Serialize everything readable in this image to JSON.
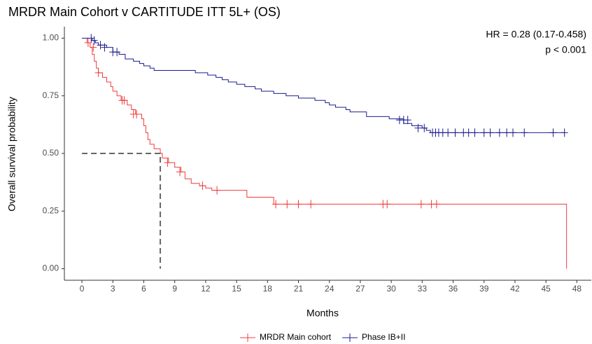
{
  "chart_data": {
    "type": "km",
    "title": "MRDR Main Cohort v CARTITUDE ITT 5L+ (OS)",
    "x_label": "Months",
    "y_label": "Overall survival probability",
    "annotations": [
      "HR = 0.28 (0.17-0.458)",
      "p < 0.001"
    ],
    "xlim": [
      -1.7,
      49.4
    ],
    "ylim": [
      -0.05,
      1.05
    ],
    "xticks": [
      0,
      3,
      6,
      9,
      12,
      15,
      18,
      21,
      24,
      27,
      30,
      33,
      36,
      39,
      42,
      45,
      48
    ],
    "yticks": [
      {
        "value": 0,
        "label": "0.00"
      },
      0.25,
      {
        "value": 0.5,
        "label": "0.50"
      },
      0.75,
      {
        "value": 1,
        "label": "1.00"
      }
    ],
    "median": {
      "x": 7.6,
      "y": 0.5
    },
    "legend": "bottom",
    "series": [
      {
        "name": "MRDR Main cohort",
        "color": "#f03c3c",
        "x": [
          0,
          0.5,
          0.8,
          1.0,
          1.2,
          1.4,
          1.6,
          2.0,
          2.4,
          2.8,
          3.0,
          3.4,
          3.8,
          4.4,
          4.8,
          5.2,
          5.8,
          6.0,
          6.2,
          6.4,
          6.6,
          7.0,
          7.6,
          7.8,
          8.4,
          9.0,
          9.6,
          10.0,
          10.6,
          11.4,
          12.0,
          12.6,
          16.0,
          18.6,
          47.0
        ],
        "values": [
          1.0,
          0.98,
          0.96,
          0.93,
          0.9,
          0.87,
          0.85,
          0.83,
          0.81,
          0.79,
          0.77,
          0.75,
          0.73,
          0.71,
          0.69,
          0.67,
          0.65,
          0.62,
          0.59,
          0.56,
          0.54,
          0.52,
          0.5,
          0.48,
          0.46,
          0.44,
          0.42,
          0.39,
          0.37,
          0.36,
          0.35,
          0.34,
          0.31,
          0.28,
          0.0
        ],
        "censored": {
          "x": [
            0.6,
            1.1,
            1.6,
            3.9,
            4.1,
            5.0,
            5.3,
            8.3,
            9.5,
            11.7,
            13.1,
            18.8,
            19.9,
            21.0,
            22.2,
            29.2,
            29.6,
            32.9,
            33.9,
            34.4
          ],
          "values": [
            0.98,
            0.96,
            0.85,
            0.73,
            0.73,
            0.67,
            0.67,
            0.46,
            0.42,
            0.36,
            0.34,
            0.28,
            0.28,
            0.28,
            0.28,
            0.28,
            0.28,
            0.28,
            0.28,
            0.28
          ]
        }
      },
      {
        "name": "Phase IB+II",
        "color": "#1c1c8e",
        "x": [
          0,
          1.0,
          1.3,
          1.6,
          2.4,
          3.0,
          3.6,
          4.2,
          5.0,
          5.6,
          6.0,
          6.6,
          7.0,
          11.0,
          12.2,
          13.0,
          13.6,
          14.2,
          15.0,
          15.8,
          16.8,
          17.4,
          18.6,
          19.8,
          21.0,
          22.6,
          23.6,
          24.0,
          24.6,
          25.6,
          26.0,
          27.6,
          29.8,
          31.2,
          32.0,
          33.0,
          33.4,
          33.8,
          46.8
        ],
        "values": [
          1.0,
          0.99,
          0.98,
          0.97,
          0.96,
          0.94,
          0.93,
          0.91,
          0.9,
          0.89,
          0.88,
          0.87,
          0.86,
          0.85,
          0.84,
          0.83,
          0.82,
          0.81,
          0.8,
          0.79,
          0.78,
          0.77,
          0.76,
          0.75,
          0.74,
          0.73,
          0.72,
          0.71,
          0.7,
          0.69,
          0.68,
          0.66,
          0.65,
          0.63,
          0.62,
          0.61,
          0.6,
          0.59,
          0.59
        ],
        "censored": {
          "x": [
            0.9,
            1.2,
            1.8,
            2.2,
            3.0,
            3.4,
            30.8,
            31.2,
            31.6,
            32.6,
            33.2,
            34.0,
            34.3,
            34.6,
            35.0,
            35.5,
            36.2,
            37.0,
            37.5,
            38.1,
            39.0,
            39.6,
            40.5,
            41.2,
            41.8,
            42.9,
            45.7,
            46.8
          ],
          "values": [
            1.0,
            0.99,
            0.97,
            0.96,
            0.94,
            0.94,
            0.645,
            0.645,
            0.645,
            0.61,
            0.61,
            0.59,
            0.59,
            0.59,
            0.59,
            0.59,
            0.59,
            0.59,
            0.59,
            0.59,
            0.59,
            0.59,
            0.59,
            0.59,
            0.59,
            0.59,
            0.59,
            0.59
          ]
        }
      }
    ]
  }
}
